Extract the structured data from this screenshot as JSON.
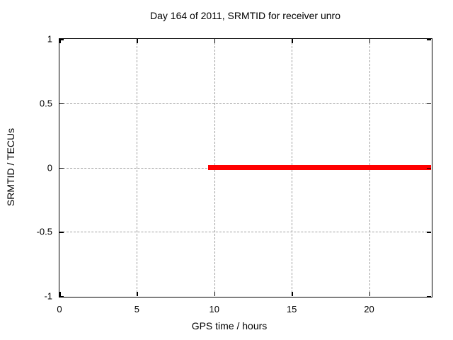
{
  "chart_data": {
    "type": "line",
    "title": "Day 164 of 2011, SRMTID for receiver unro",
    "xlabel": "GPS time / hours",
    "ylabel": "SRMTID / TECUs",
    "xlim": [
      0,
      24
    ],
    "ylim": [
      -1,
      1
    ],
    "xticks": [
      {
        "v": 0,
        "label": "0"
      },
      {
        "v": 5,
        "label": "5"
      },
      {
        "v": 10,
        "label": "10"
      },
      {
        "v": 15,
        "label": "15"
      },
      {
        "v": 20,
        "label": "20"
      }
    ],
    "yticks": [
      {
        "v": -1,
        "label": "-1"
      },
      {
        "v": -0.5,
        "label": "-0.5"
      },
      {
        "v": 0,
        "label": "0"
      },
      {
        "v": 0.5,
        "label": "0.5"
      },
      {
        "v": 1,
        "label": "1"
      }
    ],
    "grid": true,
    "legend": "none",
    "colors": {
      "background": "#ffffff",
      "border": "#000000",
      "grid": "#a0a0a0",
      "text": "#000000",
      "series": "#ff0000"
    },
    "series": [
      {
        "name": "SRMTID",
        "color": "#ff0000",
        "linewidth": 7,
        "points": [
          [
            9.6,
            0
          ],
          [
            24,
            0
          ]
        ]
      }
    ]
  }
}
